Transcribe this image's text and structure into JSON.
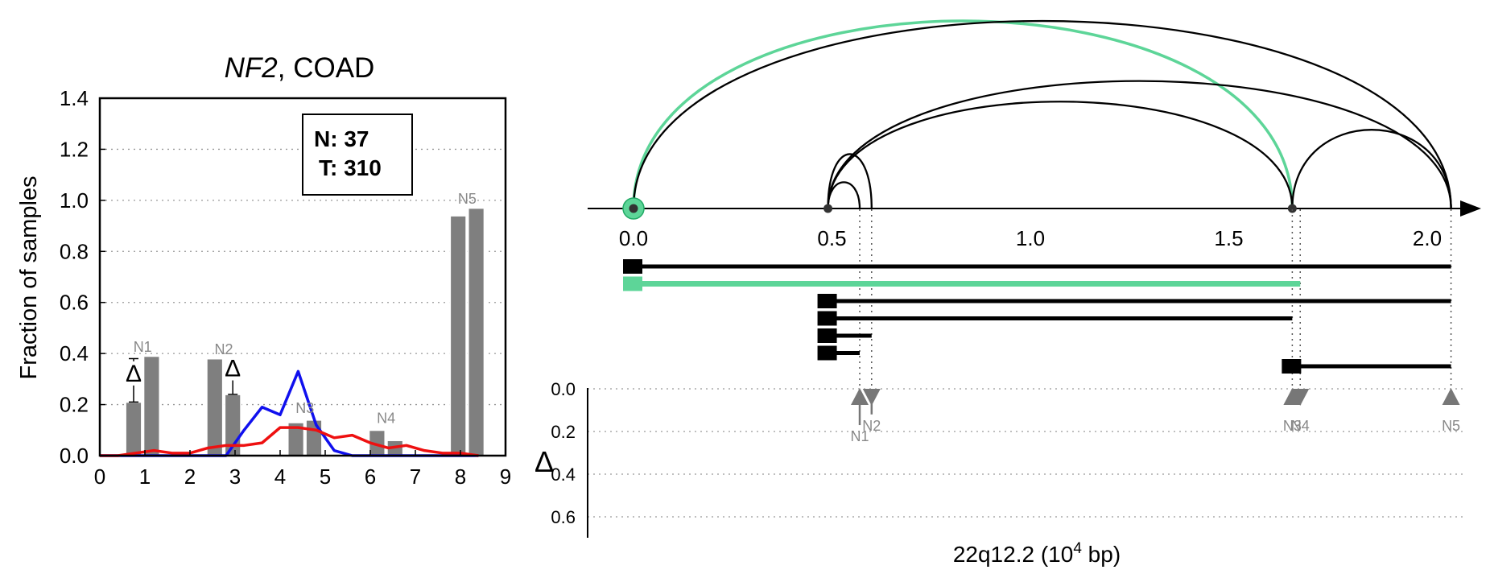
{
  "chart_data": [
    {
      "type": "bar",
      "title_gene": "NF2",
      "title_rest": ", COAD",
      "ylabel": "Fraction of samples",
      "xlim": [
        0,
        9
      ],
      "ylim": [
        0,
        1.4
      ],
      "xticks": [
        "0",
        "1",
        "2",
        "3",
        "4",
        "5",
        "6",
        "7",
        "8",
        "9"
      ],
      "yticks": [
        "0.0",
        "0.2",
        "0.4",
        "0.6",
        "0.8",
        "1.0",
        "1.2",
        "1.4"
      ],
      "grid": true,
      "legend": {
        "n_label": "N: 37",
        "t_label": "T: 310",
        "placement": "top-right"
      },
      "delta_symbol": "Δ",
      "bars": [
        {
          "x": 0.75,
          "value": 0.21
        },
        {
          "x": 1.15,
          "value": 0.39
        },
        {
          "x": 2.55,
          "value": 0.38
        },
        {
          "x": 2.95,
          "value": 0.24
        },
        {
          "x": 4.35,
          "value": 0.13
        },
        {
          "x": 4.75,
          "value": 0.14
        },
        {
          "x": 6.15,
          "value": 0.1
        },
        {
          "x": 6.55,
          "value": 0.06
        },
        {
          "x": 7.95,
          "value": 0.94
        },
        {
          "x": 8.35,
          "value": 0.97
        }
      ],
      "bar_labels": [
        {
          "text": "N1",
          "x": 0.95,
          "y": 0.42
        },
        {
          "text": "N2",
          "x": 2.75,
          "y": 0.41
        },
        {
          "text": "N3",
          "x": 4.55,
          "y": 0.18
        },
        {
          "text": "N4",
          "x": 6.35,
          "y": 0.14
        },
        {
          "text": "N5",
          "x": 8.15,
          "y": 1.0
        }
      ],
      "deltas": [
        {
          "x": 0.75,
          "low": 0.21,
          "high": 0.38,
          "label_y": 0.3
        },
        {
          "x": 2.95,
          "low": 0.24,
          "high": 0.37,
          "label_y": 0.32
        }
      ],
      "series": [
        {
          "color": "#1010ee",
          "x": [
            0,
            0.4,
            0.8,
            1.2,
            1.6,
            2.0,
            2.4,
            2.8,
            3.2,
            3.6,
            4.0,
            4.4,
            4.8,
            5.2,
            5.6,
            6.0,
            6.4,
            6.8,
            7.2,
            7.6,
            8.0,
            8.4
          ],
          "y": [
            0,
            0,
            0,
            0,
            0,
            0,
            0,
            0,
            0.1,
            0.19,
            0.16,
            0.33,
            0.12,
            0.02,
            0,
            0,
            0,
            0,
            0,
            0,
            0,
            0
          ]
        },
        {
          "color": "#ee1010",
          "x": [
            0,
            0.4,
            0.8,
            1.2,
            1.6,
            2.0,
            2.4,
            2.8,
            3.2,
            3.6,
            4.0,
            4.4,
            4.8,
            5.2,
            5.6,
            6.0,
            6.4,
            6.8,
            7.2,
            7.6,
            8.0,
            8.4
          ],
          "y": [
            0,
            0,
            0.01,
            0.02,
            0.01,
            0.01,
            0.03,
            0.04,
            0.04,
            0.05,
            0.11,
            0.11,
            0.1,
            0.07,
            0.08,
            0.05,
            0.03,
            0.04,
            0.02,
            0.01,
            0.01,
            0
          ]
        }
      ]
    },
    {
      "type": "diagram",
      "xlabel_main": "22q12.2 (10",
      "xlabel_sup": "4",
      "xlabel_tail": " bp)",
      "xlim": [
        0,
        2.1
      ],
      "xticks": [
        "0.0",
        "0.5",
        "1.0",
        "1.5",
        "2.0"
      ],
      "xtick_values": [
        0,
        0.5,
        1.0,
        1.5,
        2.0
      ],
      "delta_axis_label": "Δ",
      "delta_yticks": [
        "0.0",
        "0.2",
        "0.4",
        "0.6"
      ],
      "delta_ytick_values": [
        0,
        0.2,
        0.4,
        0.6
      ],
      "highlight_color": "#5dd598",
      "nodes": [
        {
          "x": 0.0,
          "highlight": true
        },
        {
          "x": 0.49,
          "highlight": false
        },
        {
          "x": 1.66,
          "highlight": false
        }
      ],
      "arcs": [
        {
          "from": 0.0,
          "to": 1.66,
          "height": 1.0,
          "highlight": true
        },
        {
          "from": 0.0,
          "to": 2.06,
          "height": 1.0,
          "highlight": false
        },
        {
          "from": 0.49,
          "to": 1.66,
          "height": 0.57,
          "highlight": false
        },
        {
          "from": 0.49,
          "to": 2.06,
          "height": 0.68,
          "highlight": false
        },
        {
          "from": 0.49,
          "to": 0.6,
          "height": 0.29,
          "highlight": false
        },
        {
          "from": 0.49,
          "to": 0.57,
          "height": 0.14,
          "highlight": false
        },
        {
          "from": 1.66,
          "to": 2.06,
          "height": 0.42,
          "highlight": false
        }
      ],
      "isoforms": [
        {
          "start": 0.0,
          "end": 2.06,
          "highlight": false
        },
        {
          "start": 0.0,
          "end": 1.68,
          "highlight": true
        },
        {
          "start": 0.49,
          "end": 2.06,
          "highlight": false
        },
        {
          "start": 0.49,
          "end": 1.66,
          "highlight": false
        },
        {
          "start": 0.49,
          "end": 0.6,
          "highlight": false
        },
        {
          "start": 0.49,
          "end": 0.57,
          "highlight": false
        },
        {
          "start": 1.66,
          "end": 2.06,
          "highlight": false
        }
      ],
      "guides": [
        0.57,
        0.6,
        1.66,
        1.68,
        2.06
      ],
      "markers": [
        {
          "label": "N1",
          "x": 0.57,
          "delta": 0.17,
          "direction": "up"
        },
        {
          "label": "N2",
          "x": 0.6,
          "delta": 0.12,
          "direction": "down"
        },
        {
          "label": "N3",
          "x": 1.66,
          "delta": 0.02,
          "direction": "up"
        },
        {
          "label": "N4",
          "x": 1.68,
          "delta": 0.02,
          "direction": "down"
        },
        {
          "label": "N5",
          "x": 2.06,
          "delta": 0.02,
          "direction": "up"
        }
      ]
    }
  ]
}
